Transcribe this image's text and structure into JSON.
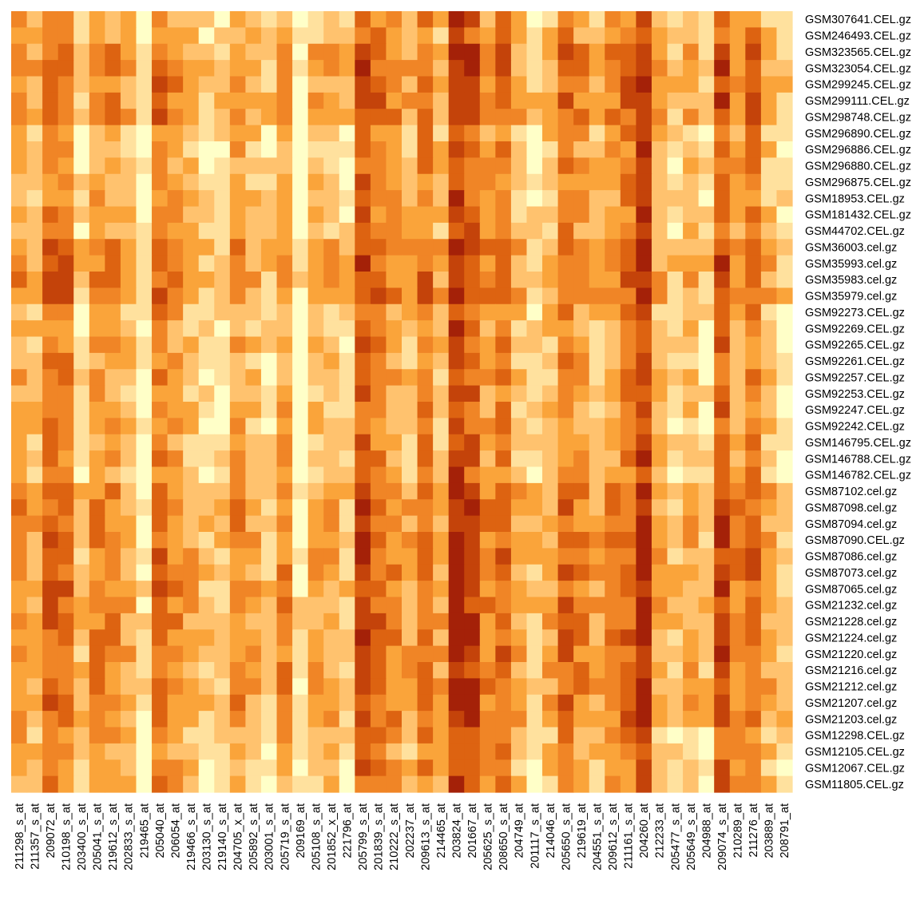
{
  "chart_data": {
    "type": "heatmap",
    "title": "",
    "xlabel": "",
    "ylabel": "",
    "legend": "none",
    "grid": false,
    "color_scale": [
      "#FFFFC8",
      "#FFE19E",
      "#FFC26E",
      "#FAA43A",
      "#F08526",
      "#DD6311",
      "#C4430A",
      "#A42108"
    ],
    "row_labels": [
      "GSM307641.CEL.gz",
      "GSM246493.CEL.gz",
      "GSM323565.CEL.gz",
      "GSM323054.CEL.gz",
      "GSM299245.CEL.gz",
      "GSM299111.CEL.gz",
      "GSM298748.CEL.gz",
      "GSM296890.CEL.gz",
      "GSM296886.CEL.gz",
      "GSM296880.CEL.gz",
      "GSM296875.CEL.gz",
      "GSM18953.CEL.gz",
      "GSM181432.CEL.gz",
      "GSM44702.CEL.gz",
      "GSM36003.cel.gz",
      "GSM35993.cel.gz",
      "GSM35983.cel.gz",
      "GSM35979.cel.gz",
      "GSM92273.CEL.gz",
      "GSM92269.CEL.gz",
      "GSM92265.CEL.gz",
      "GSM92261.CEL.gz",
      "GSM92257.CEL.gz",
      "GSM92253.CEL.gz",
      "GSM92247.CEL.gz",
      "GSM92242.CEL.gz",
      "GSM146795.CEL.gz",
      "GSM146788.CEL.gz",
      "GSM146782.CEL.gz",
      "GSM87102.cel.gz",
      "GSM87098.cel.gz",
      "GSM87094.cel.gz",
      "GSM87090.CEL.gz",
      "GSM87086.cel.gz",
      "GSM87073.cel.gz",
      "GSM87065.cel.gz",
      "GSM21232.cel.gz",
      "GSM21228.cel.gz",
      "GSM21224.cel.gz",
      "GSM21220.cel.gz",
      "GSM21216.cel.gz",
      "GSM21212.cel.gz",
      "GSM21207.cel.gz",
      "GSM21203.cel.gz",
      "GSM12298.CEL.gz",
      "GSM12105.CEL.gz",
      "GSM12067.CEL.gz",
      "GSM11805.CEL.gz"
    ],
    "column_labels": [
      "211298_s_at",
      "211357_s_at",
      "209072_at",
      "210198_s_at",
      "203400_s_at",
      "205041_s_at",
      "219612_s_at",
      "202833_s_at",
      "219465_at",
      "205040_at",
      "206054_at",
      "219466_s_at",
      "203130_s_at",
      "219140_s_at",
      "204705_x_at",
      "205892_s_at",
      "203001_s_at",
      "205719_s_at",
      "209169_at",
      "205108_s_at",
      "201852_x_at",
      "221796_at",
      "205799_s_at",
      "201839_s_at",
      "210222_s_at",
      "202237_at",
      "209613_s_at",
      "214465_at",
      "203824_at",
      "201667_at",
      "205625_s_at",
      "208650_s_at",
      "204749_at",
      "201117_s_at",
      "214046_at",
      "205650_s_at",
      "219619_at",
      "204551_s_at",
      "209612_s_at",
      "211161_s_at",
      "204260_at",
      "212233_at",
      "205477_s_at",
      "205649_s_at",
      "204988_at",
      "209074_s_at",
      "210289_at",
      "211276_at",
      "203889_at",
      "208791_at"
    ],
    "column_level_profile": [
      3,
      2,
      4,
      4,
      1,
      3,
      3,
      2,
      0,
      4,
      3,
      2,
      1,
      1,
      3,
      2,
      1,
      3,
      0,
      2,
      2,
      1,
      5,
      4,
      3,
      2,
      4,
      2,
      6,
      5,
      3,
      4,
      2,
      1,
      2,
      4,
      3,
      2,
      3,
      4,
      6,
      2,
      1,
      2,
      1,
      5,
      3,
      4,
      2,
      1
    ],
    "row_group_bias": [
      {
        "rows": [
          0,
          1
        ],
        "bias": 0
      },
      {
        "rows": [
          2,
          6
        ],
        "bias": 1
      },
      {
        "rows": [
          7,
          13
        ],
        "bias": 0
      },
      {
        "rows": [
          14,
          17
        ],
        "bias": 1
      },
      {
        "rows": [
          18,
          28
        ],
        "bias": 0
      },
      {
        "rows": [
          29,
          43
        ],
        "bias": 1
      },
      {
        "rows": [
          44,
          47
        ],
        "bias": 0
      }
    ]
  }
}
